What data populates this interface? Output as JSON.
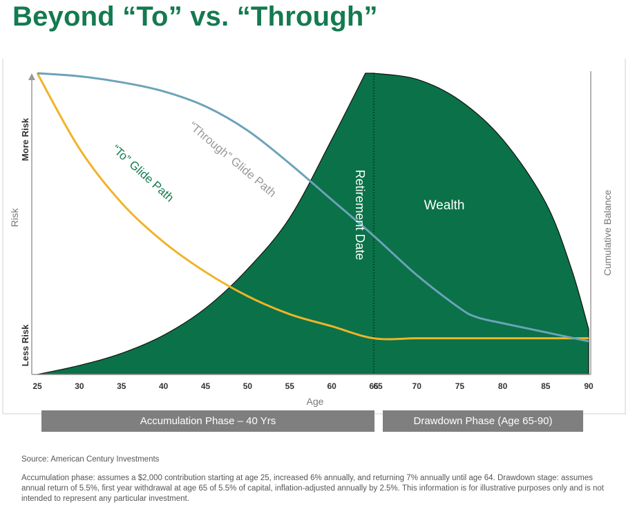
{
  "page": {
    "title": "Beyond “To” vs. “Through”"
  },
  "colors": {
    "title": "#147a4f",
    "wealth": "#0b7148",
    "to_line": "#f0b429",
    "through_line": "#6ba3b8",
    "phase_bar": "#7f7f7f"
  },
  "chart_data": {
    "type": "area",
    "title": "",
    "xlabel": "Age",
    "ylabel_left": "Risk",
    "ylabel_right": "Cumulative Balance",
    "y_ticks_left": {
      "top": "More Risk",
      "bottom": "Less Risk"
    },
    "xlim": [
      25,
      90
    ],
    "ylim": [
      0,
      100
    ],
    "x_ticks": [
      "25",
      "30",
      "35",
      "40",
      "45",
      "50",
      "55",
      "60",
      "65",
      "65",
      "70",
      "75",
      "80",
      "85",
      "90"
    ],
    "retirement_age": 65,
    "series": [
      {
        "name": "Wealth",
        "values_x": [
          25,
          30,
          35,
          40,
          45,
          50,
          55,
          60,
          64,
          65,
          70,
          75,
          80,
          85,
          88,
          90
        ],
        "values_y": [
          0,
          3,
          7,
          13,
          22,
          35,
          52,
          78,
          100,
          100,
          98,
          91,
          78,
          57,
          35,
          15
        ]
      },
      {
        "name": "“To” Glide Path",
        "values_x": [
          25,
          30,
          35,
          40,
          45,
          50,
          55,
          60,
          65,
          70,
          75,
          80,
          85,
          90
        ],
        "values_y": [
          100,
          75,
          57,
          44,
          34,
          26,
          20,
          16,
          12,
          12,
          12,
          12,
          12,
          12
        ]
      },
      {
        "name": "“Through” Glide Path",
        "values_x": [
          25,
          30,
          35,
          40,
          45,
          50,
          55,
          60,
          65,
          70,
          75,
          77,
          80,
          85,
          90
        ],
        "values_y": [
          100,
          99,
          97,
          94,
          89,
          81,
          70,
          58,
          46,
          33,
          22,
          19,
          17,
          14,
          11
        ]
      }
    ],
    "annotations": {
      "retirement": "Retirement Date",
      "wealth": "Wealth",
      "to_path": "“To” Glide Path",
      "through_path": "“Through” Glide Path"
    },
    "phases": {
      "accumulation": "Accumulation Phase – 40 Yrs",
      "drawdown": "Drawdown Phase (Age 65-90)"
    }
  },
  "footer": {
    "source": "Source: American Century Investments",
    "note": "Accumulation phase: assumes a $2,000 contribution starting at age 25, increased 6% annually, and returning 7% annually until age 64. Drawdown stage: assumes annual return of 5.5%, first year withdrawal at age 65 of 5.5% of capital, inflation-adjusted annually by 2.5%. This information is for illustrative purposes only and is not intended to represent any particular investment."
  }
}
